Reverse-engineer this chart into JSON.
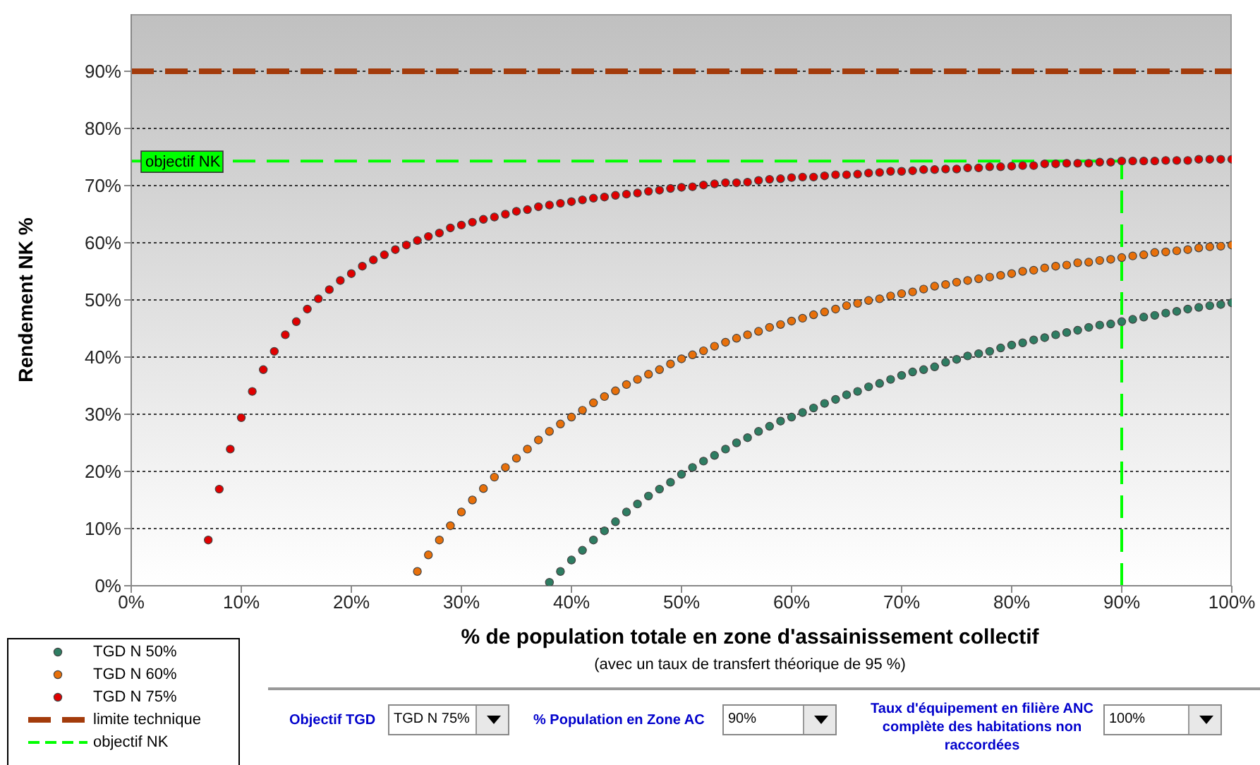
{
  "chart_data": {
    "type": "scatter",
    "xlabel": "% de population totale en zone d'assainissement collectif",
    "ylabel": "Rendement NK %",
    "annotations": [
      "(avec un taux de transfert théorique de 95 %)",
      "Objectif TGD",
      "TGD N 75%",
      "% Population en Zone AC",
      "90%",
      "Taux d'équipement en filière ANC complète des habitations non raccordées",
      "100%"
    ],
    "series": [
      {
        "name": "TGD N 50%",
        "color": "#2e7d62",
        "x": [
          38,
          39,
          40,
          41,
          42,
          43,
          44,
          45,
          46,
          47,
          48,
          49,
          50,
          51,
          52,
          53,
          54,
          55,
          56,
          57,
          58,
          59,
          60,
          61,
          62,
          63,
          64,
          65,
          66,
          67,
          68,
          69,
          70,
          71,
          72,
          73,
          74,
          75,
          76,
          77,
          78,
          79,
          80,
          81,
          82,
          83,
          84,
          85,
          86,
          87,
          88,
          89,
          90,
          91,
          92,
          93,
          94,
          95,
          96,
          97,
          98,
          99,
          100
        ],
        "values": [
          0.6,
          2.5,
          4.5,
          6.2,
          8.0,
          9.6,
          11.2,
          12.9,
          14.3,
          15.7,
          16.9,
          18.1,
          19.5,
          20.7,
          21.8,
          22.8,
          23.9,
          25.0,
          25.9,
          27.0,
          27.9,
          28.8,
          29.5,
          30.3,
          31.1,
          31.9,
          32.6,
          33.4,
          34.0,
          34.8,
          35.4,
          36.1,
          36.8,
          37.4,
          37.8,
          38.3,
          39.1,
          39.6,
          40.2,
          40.6,
          41.0,
          41.6,
          42.1,
          42.5,
          43.0,
          43.4,
          43.9,
          44.3,
          44.7,
          45.2,
          45.6,
          45.8,
          46.2,
          46.6,
          47.0,
          47.3,
          47.7,
          48.0,
          48.4,
          48.7,
          49.0,
          49.2,
          49.5
        ]
      },
      {
        "name": "TGD N 60%",
        "color": "#e8700a",
        "x": [
          26,
          27,
          28,
          29,
          30,
          31,
          32,
          33,
          34,
          35,
          36,
          37,
          38,
          39,
          40,
          41,
          42,
          43,
          44,
          45,
          46,
          47,
          48,
          49,
          50,
          51,
          52,
          53,
          54,
          55,
          56,
          57,
          58,
          59,
          60,
          61,
          62,
          63,
          64,
          65,
          66,
          67,
          68,
          69,
          70,
          71,
          72,
          73,
          74,
          75,
          76,
          77,
          78,
          79,
          80,
          81,
          82,
          83,
          84,
          85,
          86,
          87,
          88,
          89,
          90,
          91,
          92,
          93,
          94,
          95,
          96,
          97,
          98,
          99,
          100
        ],
        "values": [
          2.5,
          5.4,
          8.0,
          10.5,
          12.9,
          15.0,
          17.0,
          19.0,
          20.7,
          22.3,
          23.9,
          25.5,
          27.0,
          28.3,
          29.5,
          30.7,
          32.0,
          33.1,
          34.1,
          35.2,
          36.1,
          37.0,
          37.8,
          38.8,
          39.7,
          40.4,
          41.1,
          41.9,
          42.6,
          43.3,
          43.9,
          44.5,
          45.2,
          45.7,
          46.3,
          46.8,
          47.4,
          47.9,
          48.4,
          49.0,
          49.4,
          49.9,
          50.2,
          50.7,
          51.1,
          51.4,
          51.9,
          52.4,
          52.7,
          53.1,
          53.4,
          53.7,
          54.0,
          54.3,
          54.6,
          55.0,
          55.2,
          55.6,
          55.9,
          56.1,
          56.5,
          56.6,
          56.9,
          57.1,
          57.4,
          57.7,
          57.9,
          58.3,
          58.4,
          58.6,
          58.8,
          59.1,
          59.3,
          59.4,
          59.6
        ]
      },
      {
        "name": "TGD N 75%",
        "color": "#e00000",
        "x": [
          7,
          8,
          9,
          10,
          11,
          12,
          13,
          14,
          15,
          16,
          17,
          18,
          19,
          20,
          21,
          22,
          23,
          24,
          25,
          26,
          27,
          28,
          29,
          30,
          31,
          32,
          33,
          34,
          35,
          36,
          37,
          38,
          39,
          40,
          41,
          42,
          43,
          44,
          45,
          46,
          47,
          48,
          49,
          50,
          51,
          52,
          53,
          54,
          55,
          56,
          57,
          58,
          59,
          60,
          61,
          62,
          63,
          64,
          65,
          66,
          67,
          68,
          69,
          70,
          71,
          72,
          73,
          74,
          75,
          76,
          77,
          78,
          79,
          80,
          81,
          82,
          83,
          84,
          85,
          86,
          87,
          88,
          89,
          90,
          91,
          92,
          93,
          94,
          95,
          96,
          97,
          98,
          99,
          100
        ],
        "values": [
          8.0,
          16.9,
          23.9,
          29.4,
          34.0,
          37.8,
          41.0,
          43.9,
          46.2,
          48.4,
          50.2,
          51.8,
          53.4,
          54.6,
          55.9,
          57.0,
          57.9,
          58.8,
          59.6,
          60.4,
          61.1,
          61.7,
          62.6,
          63.1,
          63.6,
          64.1,
          64.5,
          65.0,
          65.5,
          65.8,
          66.3,
          66.6,
          66.9,
          67.2,
          67.5,
          67.8,
          68.0,
          68.3,
          68.5,
          68.7,
          69.0,
          69.2,
          69.5,
          69.7,
          69.8,
          70.1,
          70.3,
          70.5,
          70.5,
          70.6,
          70.9,
          71.1,
          71.2,
          71.4,
          71.5,
          71.5,
          71.7,
          71.9,
          71.9,
          72.0,
          72.2,
          72.3,
          72.5,
          72.5,
          72.6,
          72.8,
          72.8,
          72.9,
          72.9,
          73.1,
          73.1,
          73.3,
          73.3,
          73.4,
          73.5,
          73.5,
          73.8,
          73.8,
          73.9,
          73.9,
          73.9,
          74.1,
          74.1,
          74.3,
          74.3,
          74.3,
          74.3,
          74.4,
          74.4,
          74.4,
          74.6,
          74.6,
          74.6,
          74.6
        ]
      }
    ],
    "marker": "circle",
    "ref_lines": [
      {
        "axis": "y",
        "value": 90,
        "label": "limite technique",
        "color": "#a33b0b",
        "line_style": "dashed"
      },
      {
        "axis": "y",
        "value": 74.3,
        "label": "objectif NK",
        "color": "#00ff00",
        "line_style": "dashed"
      },
      {
        "axis": "x",
        "value": 90,
        "color": "#00ff00",
        "line_style": "dashed"
      }
    ],
    "xlim": [
      0,
      100
    ],
    "ylim": [
      0,
      100
    ],
    "xticks": [
      {
        "value": 0,
        "label": "0%"
      },
      {
        "value": 10,
        "label": "10%"
      },
      {
        "value": 20,
        "label": "20%"
      },
      {
        "value": 30,
        "label": "30%"
      },
      {
        "value": 40,
        "label": "40%"
      },
      {
        "value": 50,
        "label": "50%"
      },
      {
        "value": 60,
        "label": "60%"
      },
      {
        "value": 70,
        "label": "70%"
      },
      {
        "value": 80,
        "label": "80%"
      },
      {
        "value": 90,
        "label": "90%"
      },
      {
        "value": 100,
        "label": "100%"
      }
    ],
    "yticks": [
      {
        "value": 0,
        "label": "0%"
      },
      {
        "value": 10,
        "label": "10%"
      },
      {
        "value": 20,
        "label": "20%"
      },
      {
        "value": 30,
        "label": "30%"
      },
      {
        "value": 40,
        "label": "40%"
      },
      {
        "value": 50,
        "label": "50%"
      },
      {
        "value": 60,
        "label": "60%"
      },
      {
        "value": 70,
        "label": "70%"
      },
      {
        "value": 80,
        "label": "80%"
      },
      {
        "value": 90,
        "label": "90%"
      }
    ],
    "grid": "y",
    "legend": "bottom left"
  }
}
